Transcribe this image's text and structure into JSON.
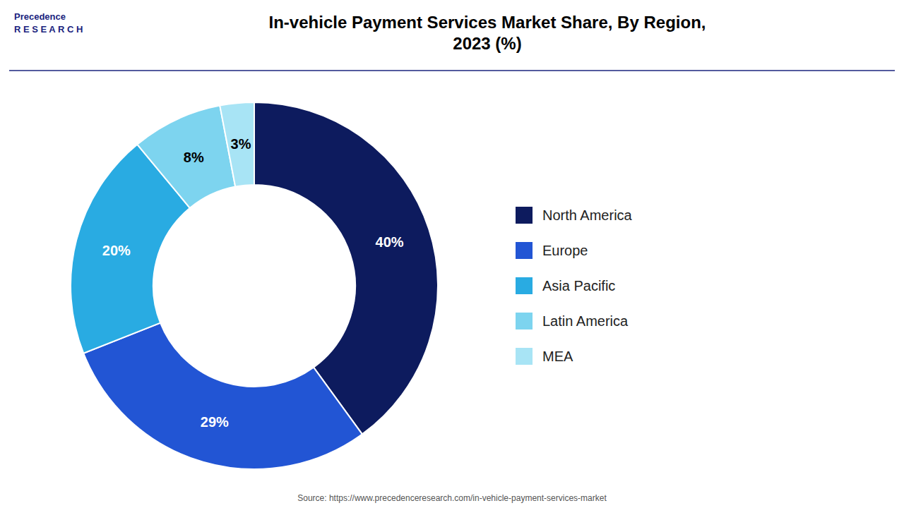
{
  "chart_data": {
    "type": "donut",
    "title": "In-vehicle Payment Services Market Share, By Region,\n2023 (%)",
    "categories": [
      "North America",
      "Europe",
      "Asia Pacific",
      "Latin America",
      "MEA"
    ],
    "values": [
      40,
      29,
      20,
      8,
      3
    ],
    "value_labels": [
      "40%",
      "29%",
      "20%",
      "8%",
      "3%"
    ],
    "colors": [
      "#0d1b5e",
      "#2255d4",
      "#29abe2",
      "#7dd4ef",
      "#a8e4f5"
    ],
    "data_labels": true,
    "legend": "right",
    "annotations": [
      "Source: https://www.precedenceresearch.com/in-vehicle-payment-services-market",
      "Precedence\nR E S E A R C H"
    ]
  }
}
